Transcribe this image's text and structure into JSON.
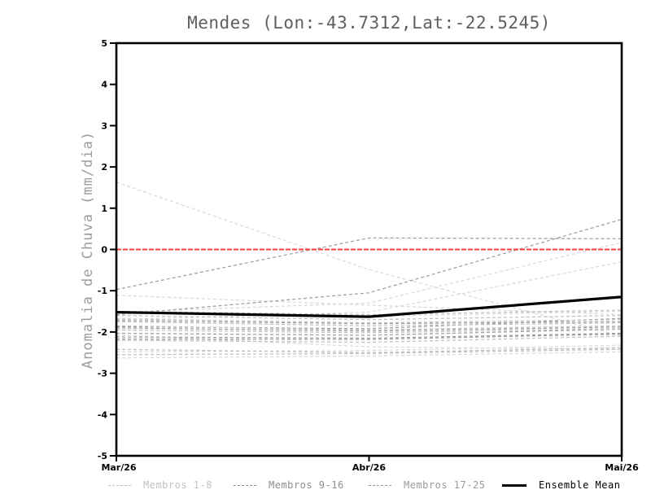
{
  "chart_data": {
    "type": "line",
    "title": "Mendes (Lon:-43.7312,Lat:-22.5245)",
    "ylabel": "Anomalia de Chuva (mm/dia)",
    "x_categories": [
      "Mar/26",
      "Abr/26",
      "Mai/26"
    ],
    "ylim": [
      -5,
      5
    ],
    "y_ticks": [
      5,
      4,
      3,
      2,
      1,
      0,
      -1,
      -2,
      -3,
      -4,
      -5
    ],
    "grid": "off",
    "legend_position": "bottom",
    "zero_line": {
      "value": 0,
      "color": "#ff4040",
      "style": "dashed"
    },
    "series": [
      {
        "name": "Membros 1-8",
        "color": "#d8d8d8",
        "style": "dashed",
        "members": [
          [
            1.63,
            -0.49,
            -2.1
          ],
          [
            -1.11,
            -1.35,
            -1.58
          ],
          [
            -1.52,
            -1.3,
            0.17
          ],
          [
            -1.7,
            -1.52,
            -0.3
          ],
          [
            -2.07,
            -2.36,
            -2.42
          ],
          [
            -2.48,
            -2.45,
            -2.32
          ],
          [
            -2.63,
            -2.58,
            -2.48
          ],
          [
            -1.55,
            -1.62,
            -1.5
          ]
        ]
      },
      {
        "name": "Membros 9-16",
        "color": "#9b9b9b",
        "style": "dashed",
        "members": [
          [
            -0.97,
            0.28,
            0.26
          ],
          [
            -1.58,
            -1.05,
            0.73
          ],
          [
            -1.87,
            -1.92,
            -1.67
          ],
          [
            -2.03,
            -2.08,
            -1.93
          ],
          [
            -2.17,
            -2.18,
            -2.05
          ],
          [
            -1.72,
            -1.8,
            -1.75
          ],
          [
            -1.9,
            -1.98,
            -1.88
          ],
          [
            -2.12,
            -2.15,
            -2.03
          ]
        ]
      },
      {
        "name": "Membros 17-25",
        "color": "#bdbdbd",
        "style": "dashed",
        "members": [
          [
            -1.6,
            -1.7,
            -1.6
          ],
          [
            -1.68,
            -1.78,
            -1.7
          ],
          [
            -1.75,
            -1.85,
            -1.78
          ],
          [
            -1.95,
            -2.02,
            -1.92
          ],
          [
            -2.2,
            -2.25,
            -2.1
          ],
          [
            -2.42,
            -2.5,
            -2.38
          ],
          [
            -1.5,
            -1.58,
            -1.47
          ],
          [
            -1.85,
            -1.95,
            -1.85
          ],
          [
            -2.55,
            -2.52,
            -2.42
          ]
        ]
      },
      {
        "name": "Ensemble Mean",
        "color": "#000000",
        "style": "solid",
        "members": [
          [
            -1.52,
            -1.63,
            -1.15
          ]
        ]
      }
    ],
    "legend": [
      {
        "label": "Membros 1-8",
        "color": "#c2c2c2",
        "line": "dashed"
      },
      {
        "label": "Membros 9-16",
        "color": "#8e8e8e",
        "line": "dashed"
      },
      {
        "label": "Membros 17-25",
        "color": "#9a9a9a",
        "line": "dashed"
      },
      {
        "label": "Ensemble Mean",
        "color": "#000000",
        "line": "solid"
      }
    ]
  }
}
